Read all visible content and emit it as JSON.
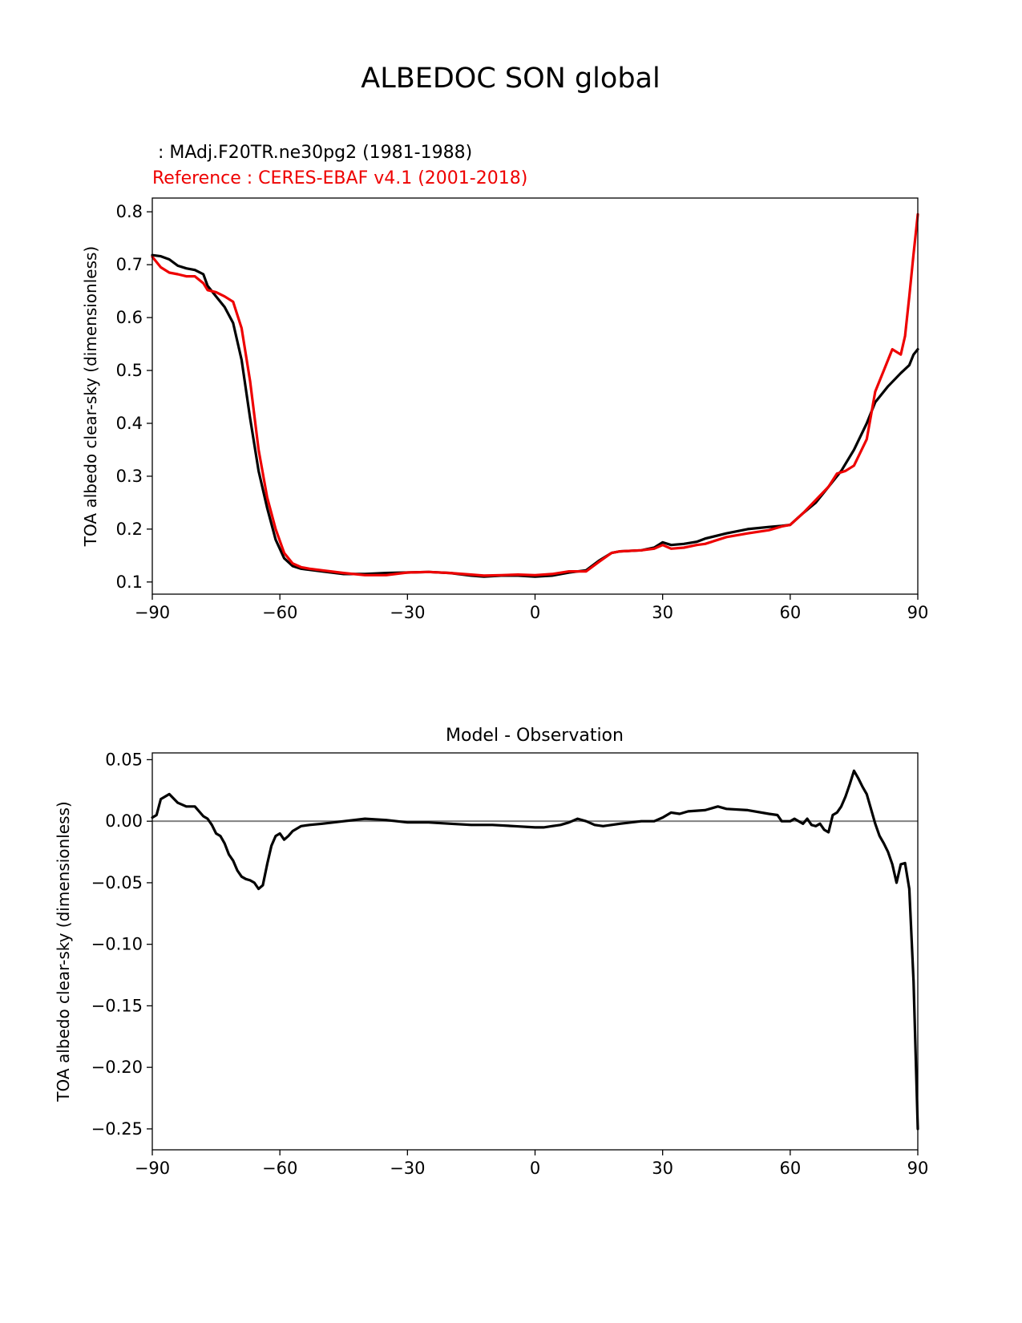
{
  "figure": {
    "title": "ALBEDOC SON global",
    "test_label": " : MAdj.F20TR.ne30pg2 (1981-1988)",
    "ref_label": "Reference : CERES-EBAF v4.1 (2001-2018)",
    "colors": {
      "test": "#000000",
      "ref": "#ee0000",
      "zero": "#808080"
    }
  },
  "chart_data": [
    {
      "type": "line",
      "title": "",
      "xlabel": "",
      "ylabel": "TOA albedo clear-sky (dimensionless)",
      "xlim": [
        -90,
        90
      ],
      "ylim": [
        0.077,
        0.826
      ],
      "xticks": [
        -90,
        -60,
        -30,
        0,
        30,
        60,
        90
      ],
      "xtick_labels": [
        "−90",
        "−60",
        "−30",
        "0",
        "30",
        "60",
        "90"
      ],
      "yticks": [
        0.1,
        0.2,
        0.3,
        0.4,
        0.5,
        0.6,
        0.7,
        0.8
      ],
      "ytick_labels": [
        "0.1",
        "0.2",
        "0.3",
        "0.4",
        "0.5",
        "0.6",
        "0.7",
        "0.8"
      ],
      "grid": false,
      "series": [
        {
          "name": " : MAdj.F20TR.ne30pg2 (1981-1988)",
          "color": "#000000",
          "x": [
            -90,
            -88,
            -86,
            -84,
            -82,
            -80,
            -78,
            -77,
            -75,
            -73,
            -71,
            -69,
            -67,
            -65,
            -63,
            -61,
            -59,
            -57,
            -55,
            -53,
            -50,
            -45,
            -40,
            -35,
            -30,
            -25,
            -20,
            -15,
            -12,
            -8,
            -4,
            0,
            4,
            8,
            12,
            15,
            18,
            20,
            25,
            28,
            30,
            32,
            35,
            38,
            40,
            45,
            50,
            55,
            58,
            60,
            63,
            66,
            69,
            72,
            75,
            78,
            80,
            83,
            86,
            88,
            89,
            90
          ],
          "y": [
            0.718,
            0.716,
            0.71,
            0.698,
            0.693,
            0.69,
            0.682,
            0.66,
            0.64,
            0.62,
            0.59,
            0.52,
            0.41,
            0.31,
            0.24,
            0.18,
            0.145,
            0.13,
            0.125,
            0.123,
            0.12,
            0.115,
            0.115,
            0.117,
            0.118,
            0.119,
            0.117,
            0.112,
            0.11,
            0.112,
            0.112,
            0.11,
            0.112,
            0.118,
            0.122,
            0.14,
            0.155,
            0.158,
            0.16,
            0.165,
            0.175,
            0.17,
            0.172,
            0.176,
            0.182,
            0.192,
            0.2,
            0.204,
            0.206,
            0.208,
            0.23,
            0.25,
            0.28,
            0.31,
            0.35,
            0.4,
            0.44,
            0.47,
            0.495,
            0.51,
            0.53,
            0.54
          ]
        },
        {
          "name": "Reference : CERES-EBAF v4.1 (2001-2018)",
          "color": "#ee0000",
          "x": [
            -90,
            -88,
            -86,
            -84,
            -82,
            -80,
            -78,
            -77,
            -75,
            -73,
            -71,
            -69,
            -67,
            -65,
            -63,
            -61,
            -59,
            -57,
            -55,
            -53,
            -50,
            -45,
            -40,
            -35,
            -30,
            -25,
            -20,
            -15,
            -12,
            -8,
            -4,
            0,
            4,
            8,
            12,
            15,
            18,
            20,
            25,
            28,
            30,
            32,
            35,
            38,
            40,
            45,
            50,
            55,
            58,
            60,
            63,
            66,
            69,
            71,
            73,
            75,
            78,
            80,
            82,
            84,
            86,
            87,
            88,
            89,
            90
          ],
          "y": [
            0.715,
            0.695,
            0.685,
            0.682,
            0.678,
            0.678,
            0.665,
            0.652,
            0.648,
            0.64,
            0.63,
            0.58,
            0.48,
            0.35,
            0.26,
            0.2,
            0.155,
            0.135,
            0.128,
            0.125,
            0.122,
            0.117,
            0.113,
            0.113,
            0.118,
            0.119,
            0.117,
            0.114,
            0.112,
            0.113,
            0.114,
            0.113,
            0.115,
            0.12,
            0.12,
            0.138,
            0.155,
            0.158,
            0.16,
            0.163,
            0.17,
            0.163,
            0.165,
            0.17,
            0.172,
            0.185,
            0.192,
            0.198,
            0.205,
            0.208,
            0.23,
            0.255,
            0.28,
            0.305,
            0.31,
            0.32,
            0.37,
            0.46,
            0.5,
            0.54,
            0.53,
            0.565,
            0.64,
            0.72,
            0.795
          ]
        }
      ]
    },
    {
      "type": "line",
      "title": "Model - Observation",
      "xlabel": "",
      "ylabel": "TOA albedo clear-sky (dimensionless)",
      "xlim": [
        -90,
        90
      ],
      "ylim": [
        -0.267,
        0.0555
      ],
      "xticks": [
        -90,
        -60,
        -30,
        0,
        30,
        60,
        90
      ],
      "xtick_labels": [
        "−90",
        "−60",
        "−30",
        "0",
        "30",
        "60",
        "90"
      ],
      "yticks": [
        0.05,
        0.0,
        -0.05,
        -0.1,
        -0.15,
        -0.2,
        -0.25
      ],
      "ytick_labels": [
        "0.05",
        "0.00",
        "−0.05",
        "−0.10",
        "−0.15",
        "−0.20",
        "−0.25"
      ],
      "grid": false,
      "zero_line": 0,
      "series": [
        {
          "color": "#000000",
          "x": [
            -90,
            -89,
            -88,
            -86,
            -84,
            -82,
            -80,
            -78,
            -77,
            -76,
            -75,
            -74,
            -73,
            -72,
            -71,
            -70,
            -69,
            -68,
            -67,
            -66,
            -65,
            -64,
            -63,
            -62,
            -61,
            -60,
            -59,
            -58,
            -57,
            -56,
            -55,
            -53,
            -50,
            -45,
            -40,
            -35,
            -30,
            -25,
            -20,
            -15,
            -10,
            -5,
            0,
            2,
            4,
            6,
            8,
            10,
            12,
            14,
            16,
            18,
            20,
            25,
            28,
            30,
            32,
            34,
            36,
            40,
            43,
            45,
            50,
            55,
            57,
            58,
            60,
            61,
            62,
            63,
            64,
            65,
            66,
            67,
            68,
            69,
            70,
            71,
            72,
            73,
            74,
            75,
            76,
            77,
            78,
            79,
            80,
            81,
            82,
            83,
            84,
            85,
            86,
            87,
            88,
            89,
            90
          ],
          "y": [
            0.003,
            0.005,
            0.018,
            0.022,
            0.015,
            0.012,
            0.012,
            0.004,
            0.002,
            -0.003,
            -0.01,
            -0.012,
            -0.018,
            -0.027,
            -0.032,
            -0.04,
            -0.045,
            -0.047,
            -0.048,
            -0.05,
            -0.055,
            -0.052,
            -0.035,
            -0.02,
            -0.012,
            -0.01,
            -0.015,
            -0.012,
            -0.008,
            -0.006,
            -0.004,
            -0.003,
            -0.002,
            0.0,
            0.002,
            0.001,
            -0.001,
            -0.001,
            -0.002,
            -0.003,
            -0.003,
            -0.004,
            -0.005,
            -0.005,
            -0.004,
            -0.003,
            -0.001,
            0.002,
            0.0,
            -0.003,
            -0.004,
            -0.003,
            -0.002,
            0.0,
            0.0,
            0.003,
            0.007,
            0.006,
            0.008,
            0.009,
            0.012,
            0.01,
            0.009,
            0.006,
            0.005,
            0.0,
            0.0,
            0.002,
            0.0,
            -0.002,
            0.002,
            -0.003,
            -0.004,
            -0.002,
            -0.007,
            -0.009,
            0.005,
            0.007,
            0.012,
            0.02,
            0.03,
            0.041,
            0.035,
            0.028,
            0.022,
            0.01,
            -0.002,
            -0.012,
            -0.018,
            -0.025,
            -0.035,
            -0.05,
            -0.035,
            -0.034,
            -0.055,
            -0.13,
            -0.25
          ]
        }
      ]
    }
  ]
}
